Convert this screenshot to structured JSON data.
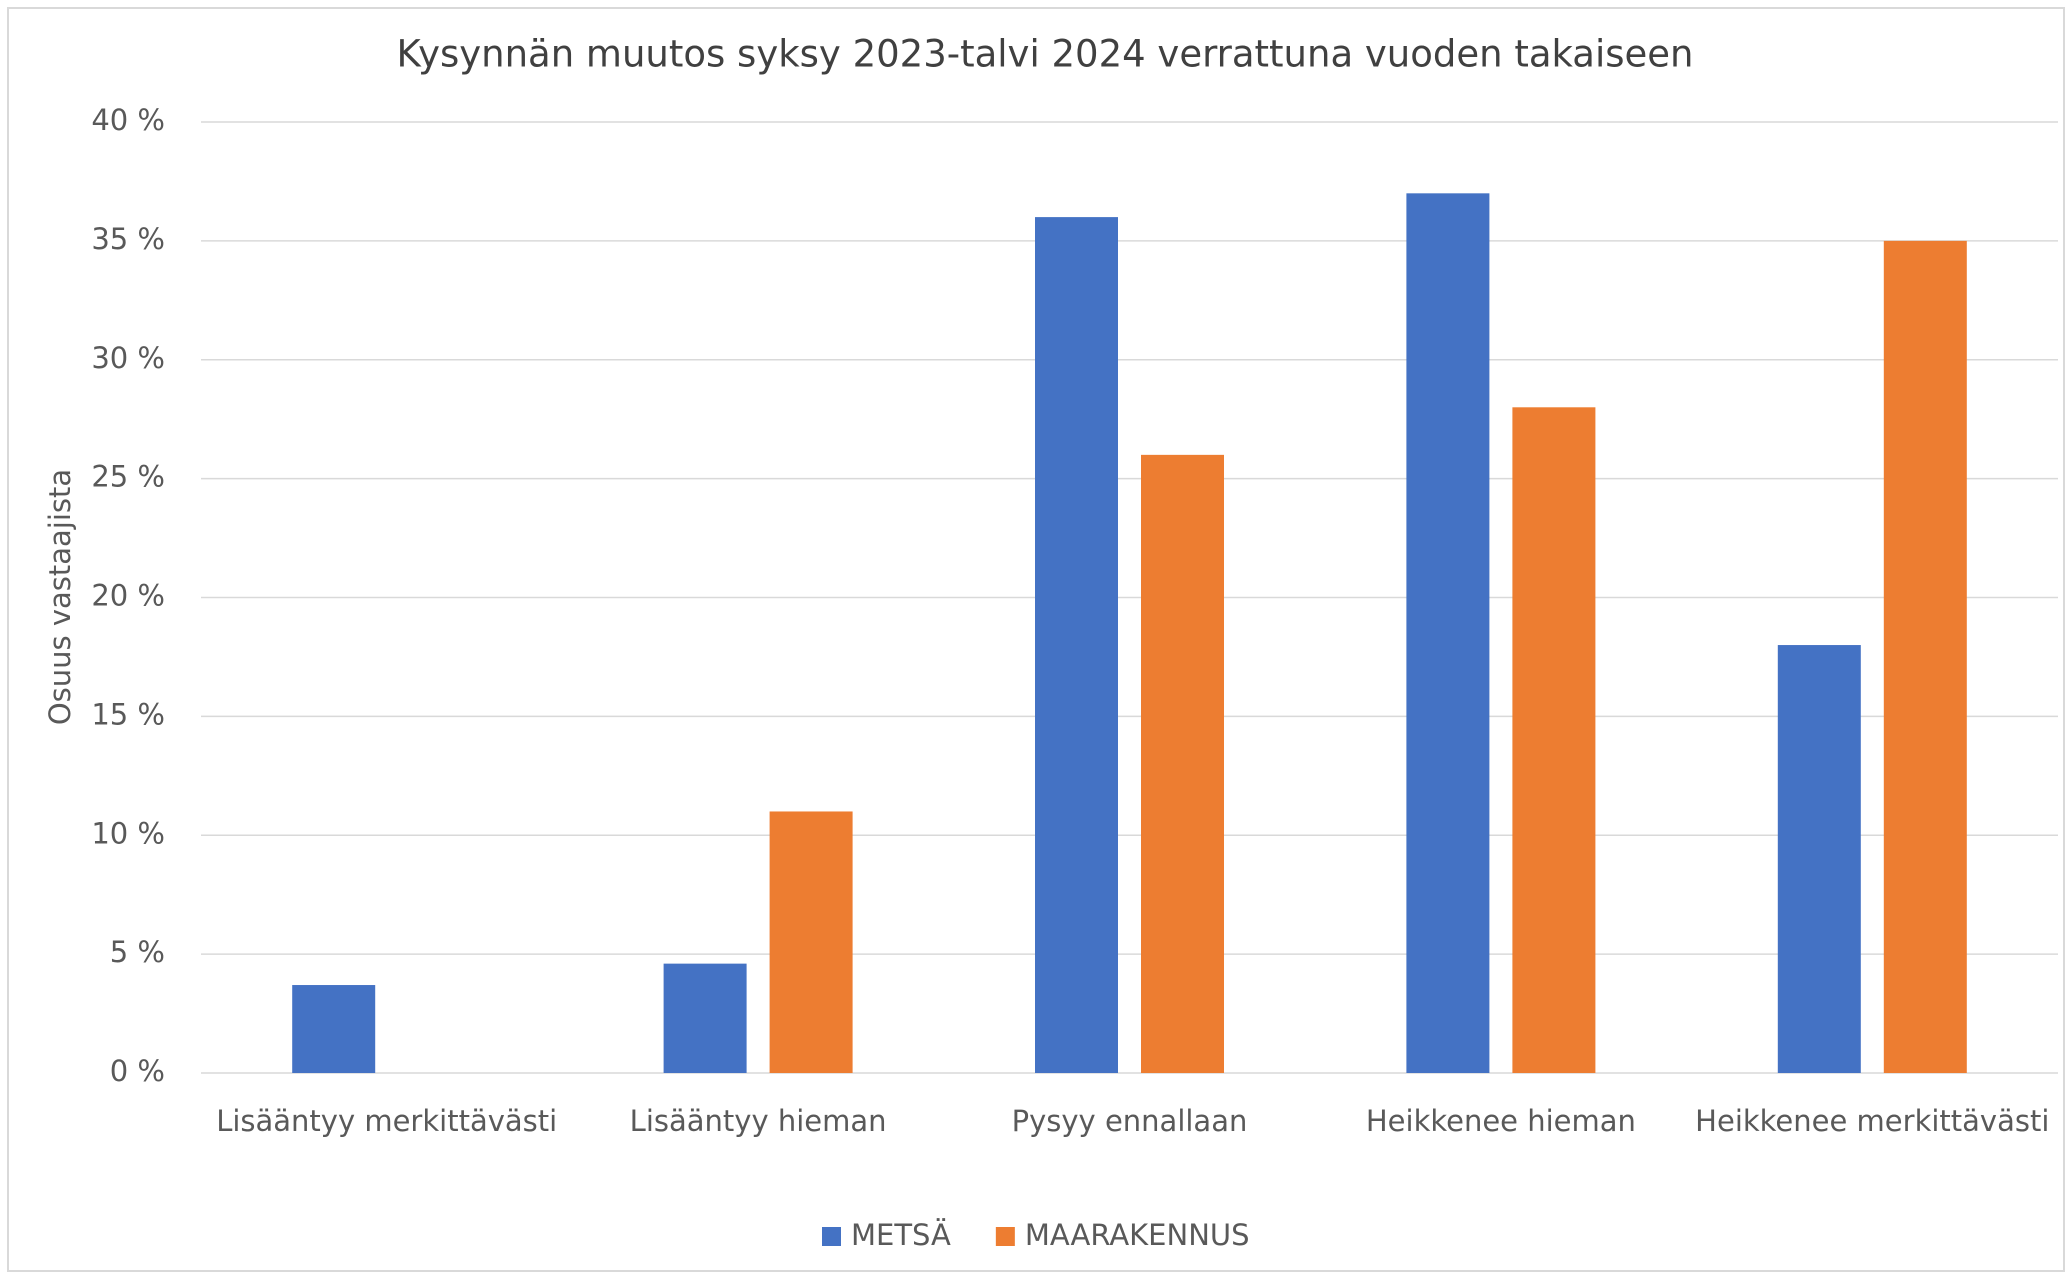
{
  "chart_data": {
    "type": "bar",
    "title": "Kysynnän muutos syksy 2023-talvi 2024 verrattuna vuoden takaiseen",
    "y_label": "Osuus vastaajista",
    "categories": [
      "Lisääntyy merkittävästi",
      "Lisääntyy hieman",
      "Pysyy ennallaan",
      "Heikkenee hieman",
      "Heikkenee merkittävästi"
    ],
    "series": [
      {
        "name": "METSÄ",
        "color": "#4472c4",
        "values": [
          3.7,
          4.6,
          36,
          37,
          18
        ]
      },
      {
        "name": "MAARAKENNUS",
        "color": "#ed7d31",
        "values": [
          0,
          11,
          26,
          28,
          35
        ]
      }
    ],
    "ylim": [
      0,
      40
    ],
    "yticks": [
      {
        "value": 0,
        "label": "0 %"
      },
      {
        "value": 5,
        "label": "5 %"
      },
      {
        "value": 10,
        "label": "10 %"
      },
      {
        "value": 15,
        "label": "15 %"
      },
      {
        "value": 20,
        "label": "20 %"
      },
      {
        "value": 25,
        "label": "25 %"
      },
      {
        "value": 30,
        "label": "30 %"
      },
      {
        "value": 35,
        "label": "35 %"
      },
      {
        "value": 40,
        "label": "40 %"
      }
    ],
    "grid": true,
    "legend": "bottom"
  }
}
